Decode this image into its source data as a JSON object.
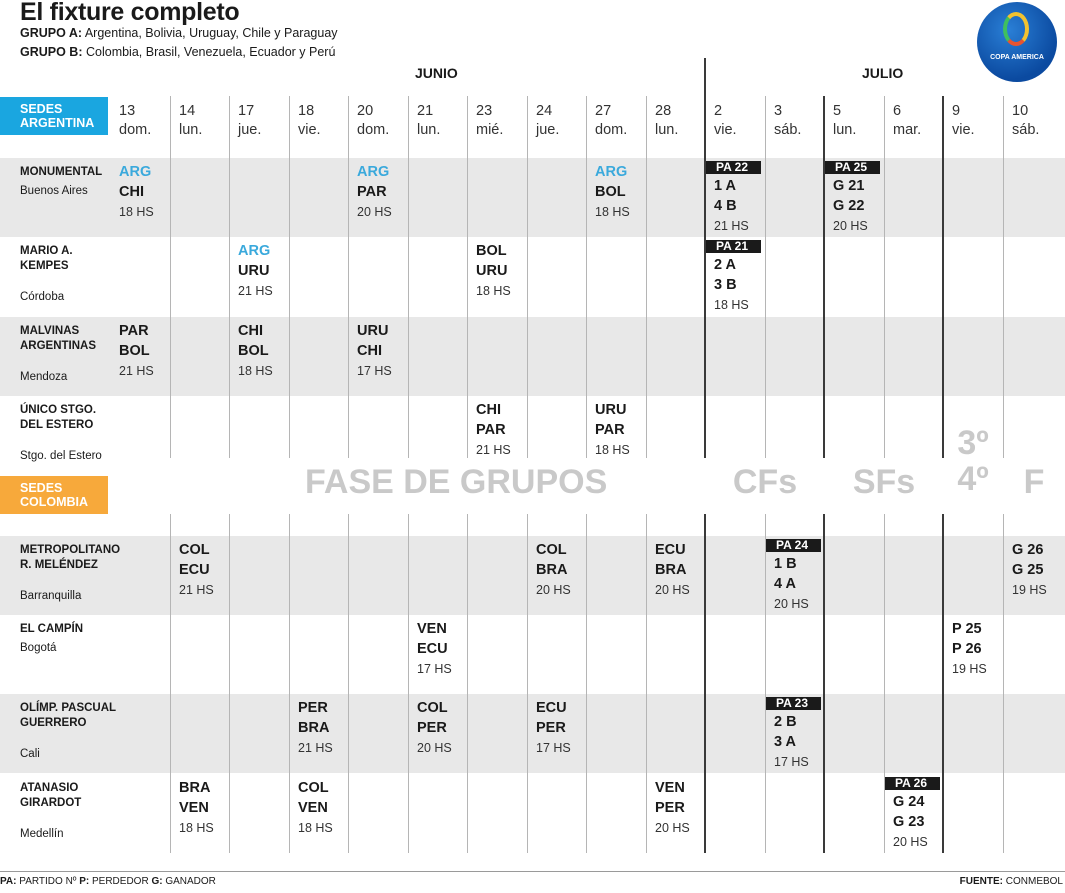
{
  "title": "El fixture completo",
  "groups": [
    {
      "label": "GRUPO A:",
      "teams": "Argentina, Bolivia, Uruguay, Chile y Paraguay"
    },
    {
      "label": "GRUPO B:",
      "teams": "Colombia, Brasil, Venezuela, Ecuador y Perú"
    }
  ],
  "logo": {
    "text": "COPA AMERICA"
  },
  "months": {
    "june": "JUNIO",
    "july": "JULIO"
  },
  "sedes_argentina": [
    "SEDES",
    "ARGENTINA"
  ],
  "sedes_colombia": [
    "SEDES",
    "COLOMBIA"
  ],
  "colors": {
    "argentina": "#1aa6e0",
    "colombia": "#f7a93b",
    "arg_team": "#3aa9dc",
    "row_bg": "#e8e8e8"
  },
  "days": [
    {
      "num": "13",
      "dow": "dom."
    },
    {
      "num": "14",
      "dow": "lun."
    },
    {
      "num": "17",
      "dow": "jue."
    },
    {
      "num": "18",
      "dow": "vie."
    },
    {
      "num": "20",
      "dow": "dom."
    },
    {
      "num": "21",
      "dow": "lun."
    },
    {
      "num": "23",
      "dow": "mié."
    },
    {
      "num": "24",
      "dow": "jue."
    },
    {
      "num": "27",
      "dow": "dom."
    },
    {
      "num": "28",
      "dow": "lun."
    },
    {
      "num": "2",
      "dow": "vie."
    },
    {
      "num": "3",
      "dow": "sáb."
    },
    {
      "num": "5",
      "dow": "lun."
    },
    {
      "num": "6",
      "dow": "mar."
    },
    {
      "num": "9",
      "dow": "vie."
    },
    {
      "num": "10",
      "dow": "sáb."
    }
  ],
  "venues": [
    {
      "name": [
        "MONUMENTAL"
      ],
      "city": "Buenos Aires",
      "matches": [
        {
          "col": 0,
          "teams": [
            "ARG",
            "CHI"
          ],
          "time": "18 HS"
        },
        {
          "col": 4,
          "teams": [
            "ARG",
            "PAR"
          ],
          "time": "20 HS"
        },
        {
          "col": 8,
          "teams": [
            "ARG",
            "BOL"
          ],
          "time": "18 HS"
        },
        {
          "col": 10,
          "pa": "PA 22",
          "teams": [
            "1 A",
            "4 B"
          ],
          "time": "21 HS"
        },
        {
          "col": 12,
          "pa": "PA 25",
          "teams": [
            "G 21",
            "G 22"
          ],
          "time": "20 HS"
        }
      ]
    },
    {
      "name": [
        "MARIO A.",
        "KEMPES"
      ],
      "city": "Córdoba",
      "matches": [
        {
          "col": 2,
          "teams": [
            "ARG",
            "URU"
          ],
          "time": "21 HS"
        },
        {
          "col": 6,
          "teams": [
            "BOL",
            "URU"
          ],
          "time": "18 HS"
        },
        {
          "col": 10,
          "pa": "PA 21",
          "teams": [
            "2 A",
            "3 B"
          ],
          "time": "18 HS"
        }
      ]
    },
    {
      "name": [
        "MALVINAS",
        "ARGENTINAS"
      ],
      "city": "Mendoza",
      "matches": [
        {
          "col": 0,
          "teams": [
            "PAR",
            "BOL"
          ],
          "time": "21 HS"
        },
        {
          "col": 2,
          "teams": [
            "CHI",
            "BOL"
          ],
          "time": "18 HS"
        },
        {
          "col": 4,
          "teams": [
            "URU",
            "CHI"
          ],
          "time": "17 HS"
        }
      ]
    },
    {
      "name": [
        "ÚNICO STGO.",
        "DEL ESTERO"
      ],
      "city": "Stgo. del Estero",
      "matches": [
        {
          "col": 6,
          "teams": [
            "CHI",
            "PAR"
          ],
          "time": "21 HS"
        },
        {
          "col": 8,
          "teams": [
            "URU",
            "PAR"
          ],
          "time": "18 HS"
        }
      ]
    },
    {
      "name": [
        "METROPOLITANO",
        "R. MELÉNDEZ"
      ],
      "city": "Barranquilla",
      "matches": [
        {
          "col": 1,
          "teams": [
            "COL",
            "ECU"
          ],
          "time": "21 HS"
        },
        {
          "col": 7,
          "teams": [
            "COL",
            "BRA"
          ],
          "time": "20 HS"
        },
        {
          "col": 9,
          "teams": [
            "ECU",
            "BRA"
          ],
          "time": "20 HS"
        },
        {
          "col": 11,
          "pa": "PA 24",
          "teams": [
            "1 B",
            "4 A"
          ],
          "time": "20 HS"
        },
        {
          "col": 15,
          "teams": [
            "G 26",
            "G 25"
          ],
          "time": "19 HS"
        }
      ]
    },
    {
      "name": [
        "EL CAMPÍN"
      ],
      "city": "Bogotá",
      "matches": [
        {
          "col": 5,
          "teams": [
            "VEN",
            "ECU"
          ],
          "time": "17 HS"
        },
        {
          "col": 14,
          "teams": [
            "P 25",
            "P 26"
          ],
          "time": "19 HS"
        }
      ]
    },
    {
      "name": [
        "OLÍMP. PASCUAL",
        "GUERRERO"
      ],
      "city": "Cali",
      "matches": [
        {
          "col": 3,
          "teams": [
            "PER",
            "BRA"
          ],
          "time": "21 HS"
        },
        {
          "col": 5,
          "teams": [
            "COL",
            "PER"
          ],
          "time": "20 HS"
        },
        {
          "col": 7,
          "teams": [
            "ECU",
            "PER"
          ],
          "time": "17 HS"
        },
        {
          "col": 11,
          "pa": "PA 23",
          "teams": [
            "2 B",
            "3 A"
          ],
          "time": "17 HS"
        }
      ]
    },
    {
      "name": [
        "ATANASIO",
        "GIRARDOT"
      ],
      "city": "Medellín",
      "matches": [
        {
          "col": 1,
          "teams": [
            "BRA",
            "VEN"
          ],
          "time": "18 HS"
        },
        {
          "col": 3,
          "teams": [
            "COL",
            "VEN"
          ],
          "time": "18 HS"
        },
        {
          "col": 9,
          "teams": [
            "VEN",
            "PER"
          ],
          "time": "20 HS"
        },
        {
          "col": 13,
          "pa": "PA 26",
          "teams": [
            "G 24",
            "G 23"
          ],
          "time": "20 HS"
        }
      ]
    }
  ],
  "phases": {
    "groups": "FASE DE GRUPOS",
    "cf": "CFs",
    "sf": "SFs",
    "third": [
      "3º",
      "4º"
    ],
    "final": "F"
  },
  "footer": {
    "legend_parts": [
      {
        "key": "PA:",
        "text": " PARTIDO Nº "
      },
      {
        "key": "P:",
        "text": " PERDEDOR "
      },
      {
        "key": "G:",
        "text": " GANADOR"
      }
    ],
    "source_key": "FUENTE:",
    "source": " CONMEBOL"
  }
}
